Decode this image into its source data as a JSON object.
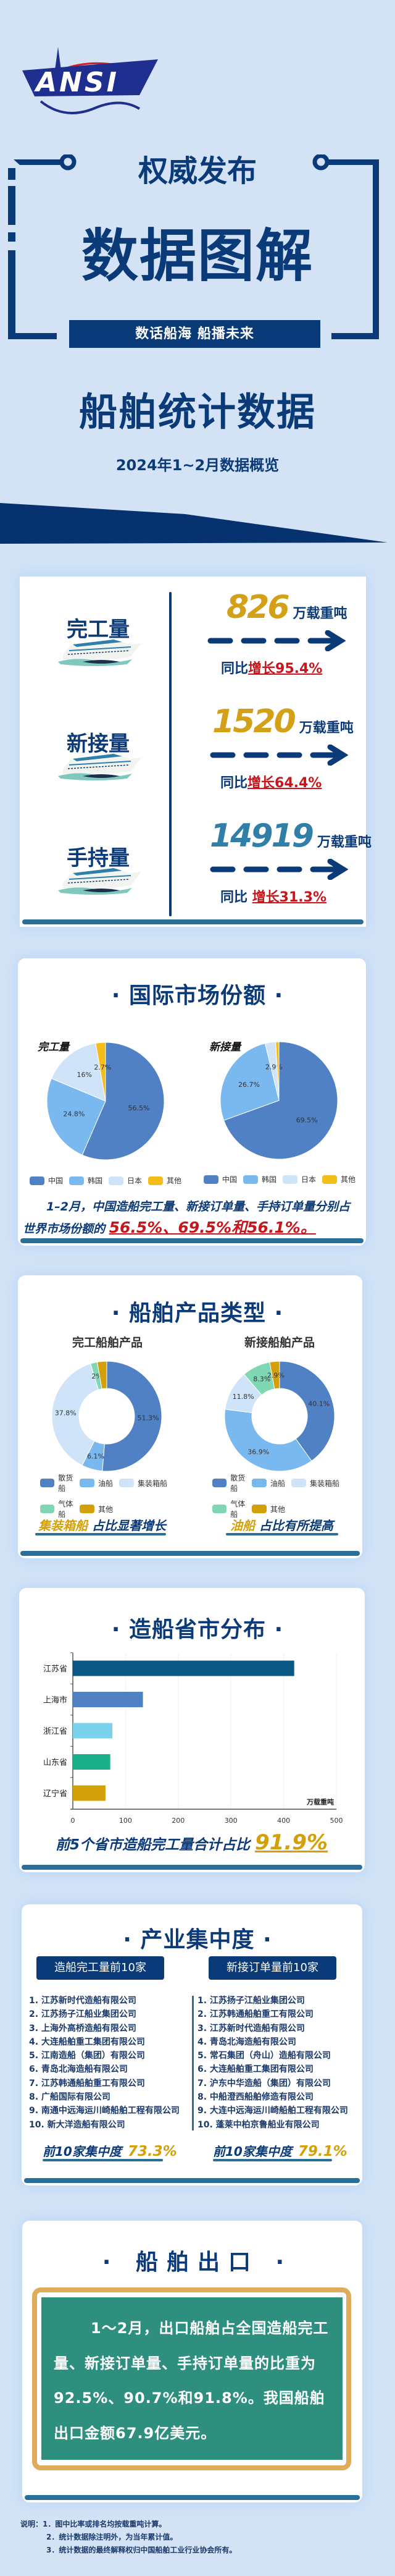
{
  "header": {
    "logo_text": "ANSI",
    "line1": "权威发布",
    "title": "数据图解",
    "slogan": "数话船海 船播未来",
    "subtitle": "船舶统计数据",
    "period": "2024年1~2月数据概览"
  },
  "overview": {
    "unit": "万载重吨",
    "yoy_prefix": "同比",
    "items": [
      {
        "label": "完工量",
        "value": "826",
        "growth": "增长95.4%",
        "value_color": "#d4a017"
      },
      {
        "label": "新接量",
        "value": "1520",
        "growth": "增长64.4%",
        "value_color": "#d4a017"
      },
      {
        "label": "手持量",
        "value": "14919",
        "growth": "增长31.3%",
        "value_color": "#2f7fa8"
      }
    ]
  },
  "market": {
    "title": "国际市场份额",
    "summary_prefix": "1–2月，中国造船完工量、新接订单量、手持订单量分别占世界市场份额的",
    "summary_highlight": "56.5%、69.5%和56.1%。"
  },
  "products": {
    "title": "船舶产品类型",
    "left_footer_highlight": "集装箱船",
    "left_footer_text": "占比显著增长",
    "right_footer_highlight": "油船",
    "right_footer_text": "占比有所提高"
  },
  "provinces": {
    "title": "造船省市分布",
    "footer_text": "前5个省市造船完工量合计占比",
    "footer_value": "91.9%"
  },
  "concentration": {
    "title": "产业集中度",
    "left_tab": "造船完工量前10家",
    "right_tab": "新接订单量前10家",
    "left_list": [
      "1. 江苏新时代造船有限公司",
      "2. 江苏扬子江船业集团公司",
      "3. 上海外高桥造船有限公司",
      "4. 大连船舶重工集团有限公司",
      "5. 江南造船（集团）有限公司",
      "6. 青岛北海造船有限公司",
      "7. 江苏韩通船舶重工有限公司",
      "8. 广船国际有限公司",
      "9. 南通中远海运川崎船舶工程有限公司",
      "10. 新大洋造船有限公司"
    ],
    "right_list": [
      "1. 江苏扬子江船业集团公司",
      "2. 江苏韩通船舶重工有限公司",
      "3. 江苏新时代造船有限公司",
      "4. 青岛北海造船有限公司",
      "5. 常石集团（舟山）造船有限公司",
      "6. 大连船舶重工集团有限公司",
      "7. 沪东中华造船（集团）有限公司",
      "8. 中船澄西船舶修造有限公司",
      "9. 大连中远海运川崎船舶工程有限公司",
      "10. 蓬莱中柏京鲁船业有限公司"
    ],
    "conc_label": "前10家集中度",
    "left_value": "73.3%",
    "right_value": "79.1%"
  },
  "export": {
    "title": "船舶出口",
    "text": "1～2月，出口船舶占全国造船完工量、新接订单量、手持订单量的比重为92.5%、90.7%和91.8%。我国船舶出口金额67.9亿美元。"
  },
  "notes": {
    "label": "说明：",
    "items": [
      "1．图中比率或排名均按载重吨计算。",
      "2．统计数据除注明外，为当年累计值。",
      "3．统计数据的最终解释权归中国船舶工业行业协会所有。"
    ]
  },
  "colors": {
    "navy": "#0b3a78",
    "gold": "#d4a017",
    "red": "#c8161d",
    "teal_bar": "#2a6f97",
    "export_green": "#2e8f7f",
    "export_border": "#e0ac5c"
  },
  "chart_data": [
    {
      "type": "pie",
      "title": "完工量",
      "categories": [
        "中国",
        "韩国",
        "日本",
        "其他"
      ],
      "values": [
        56.5,
        24.8,
        16,
        2.7
      ],
      "labels": [
        "56.5%",
        "24.8%",
        "16%",
        "2.7%"
      ],
      "colors": [
        "#4f81c4",
        "#7ab8f0",
        "#cfe4f8",
        "#f5bd1a"
      ],
      "legend": "bottom"
    },
    {
      "type": "pie",
      "title": "新接量",
      "categories": [
        "中国",
        "韩国",
        "日本",
        "其他"
      ],
      "values": [
        69.5,
        26.7,
        2.9,
        0.9
      ],
      "labels": [
        "69.5%",
        "26.7%",
        "2.9%",
        ""
      ],
      "colors": [
        "#4f81c4",
        "#7ab8f0",
        "#cfe4f8",
        "#f5bd1a"
      ],
      "legend": "bottom"
    },
    {
      "type": "pie",
      "title": "完工船舶产品",
      "donut": true,
      "categories": [
        "散货船",
        "油船",
        "集装箱船",
        "气体船",
        "其他"
      ],
      "values": [
        51.3,
        6.1,
        37.8,
        2,
        2.8
      ],
      "labels": [
        "51.3%",
        "6.1%",
        "37.8%",
        "2%",
        ""
      ],
      "colors": [
        "#4f81c4",
        "#7ab8f0",
        "#cfe4f8",
        "#7fd8b3",
        "#d4a00a"
      ],
      "legend": "bottom"
    },
    {
      "type": "pie",
      "title": "新接船舶产品",
      "donut": true,
      "categories": [
        "散货船",
        "油船",
        "集装箱船",
        "气体船",
        "其他"
      ],
      "values": [
        40.1,
        36.9,
        11.8,
        8.3,
        2.9
      ],
      "labels": [
        "40.1%",
        "36.9%",
        "11.8%",
        "8.3%",
        "2.9%"
      ],
      "colors": [
        "#4f81c4",
        "#7ab8f0",
        "#cfe4f8",
        "#7fd8b3",
        "#d4a00a"
      ],
      "legend": "bottom"
    },
    {
      "type": "bar",
      "orientation": "horizontal",
      "categories": [
        "江苏省",
        "上海市",
        "浙江省",
        "山东省",
        "辽宁省"
      ],
      "values": [
        420,
        133,
        75,
        71,
        62
      ],
      "colors": [
        "#0a5785",
        "#4f81c4",
        "#7ad3ea",
        "#1ab08a",
        "#d4a00a"
      ],
      "xlim": [
        0,
        500
      ],
      "xticks": [
        "0",
        "100",
        "200",
        "300",
        "400",
        "500"
      ],
      "unit": "万载重吨",
      "grid": true
    }
  ]
}
